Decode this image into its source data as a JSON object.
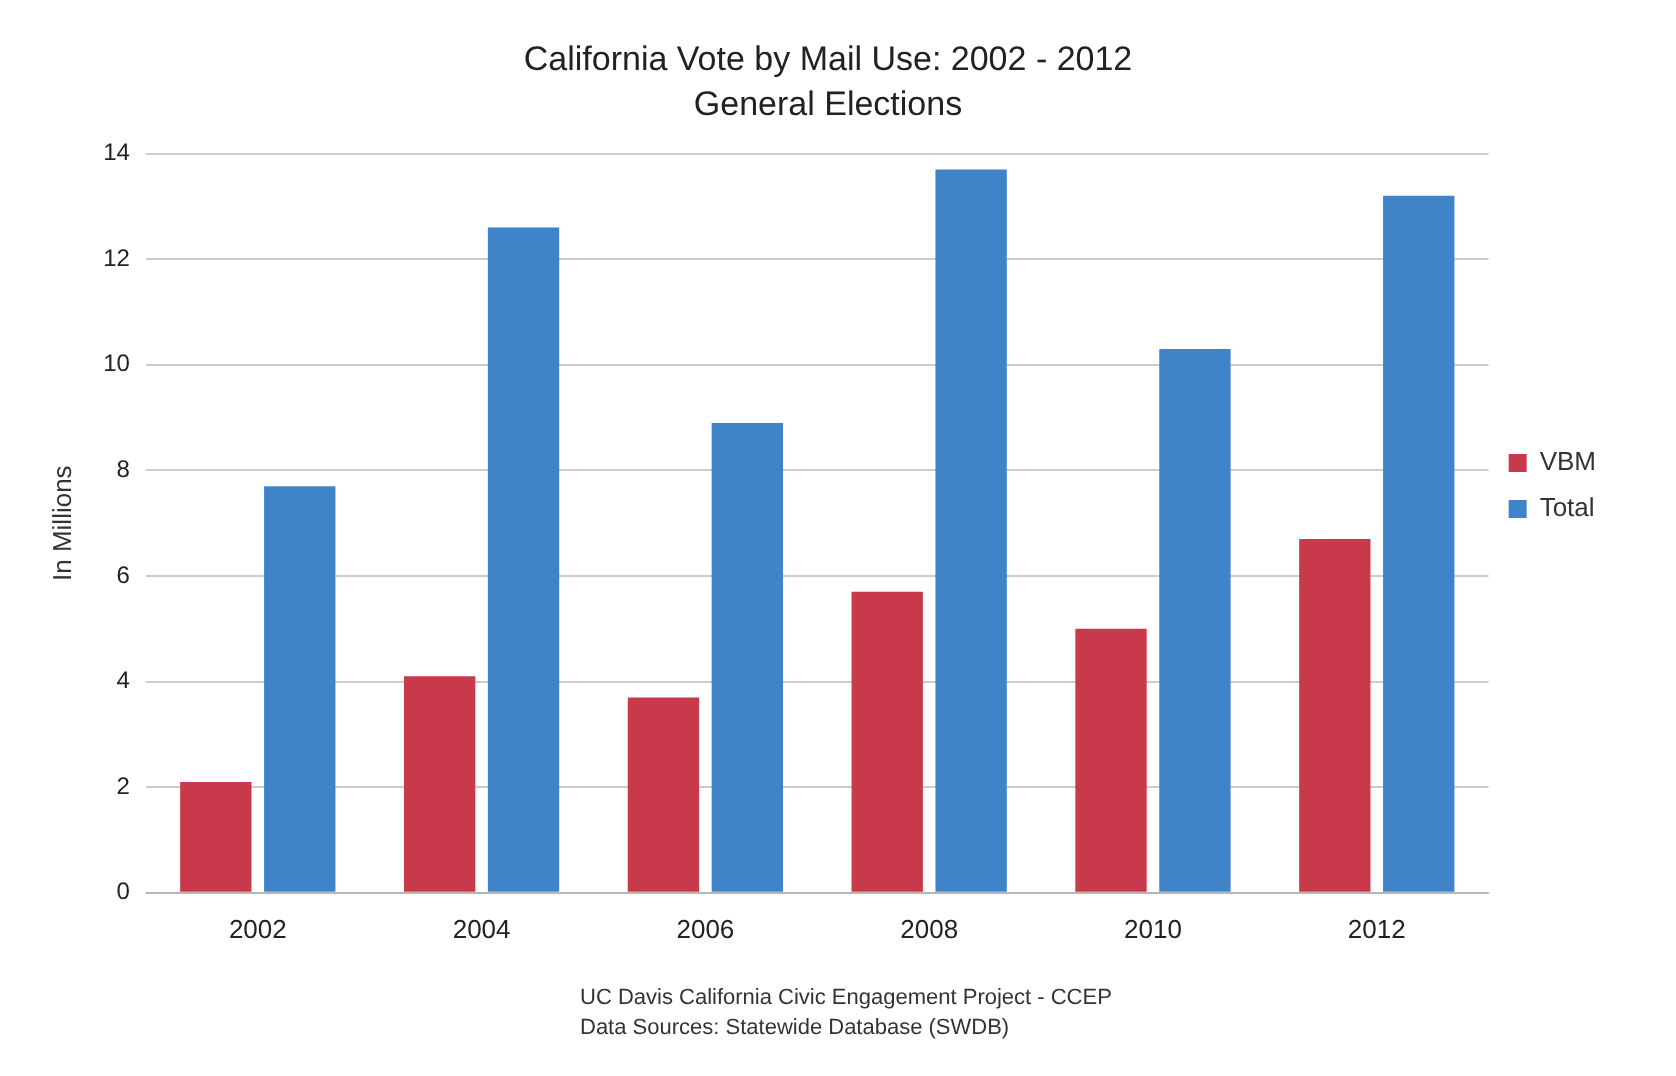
{
  "chart_data": {
    "type": "bar",
    "title": "California Vote by Mail Use: 2002 - 2012",
    "subtitle": "General Elections",
    "ylabel": "In Millions",
    "categories": [
      "2002",
      "2004",
      "2006",
      "2008",
      "2010",
      "2012"
    ],
    "series": [
      {
        "name": "VBM",
        "color": "#c8394b",
        "values": [
          2.1,
          4.1,
          3.7,
          5.7,
          5.0,
          6.7
        ]
      },
      {
        "name": "Total",
        "color": "#3f84c9",
        "values": [
          7.7,
          12.6,
          8.9,
          13.7,
          10.3,
          13.2
        ]
      }
    ],
    "ylim": [
      0,
      14
    ],
    "yticks": [
      0,
      2,
      4,
      6,
      8,
      10,
      12,
      14
    ],
    "grid": "y",
    "legend": "right",
    "annotations": [
      "UC Davis California Civic Engagement Project - CCEP",
      "Data Sources: Statewide Database (SWDB)"
    ]
  }
}
